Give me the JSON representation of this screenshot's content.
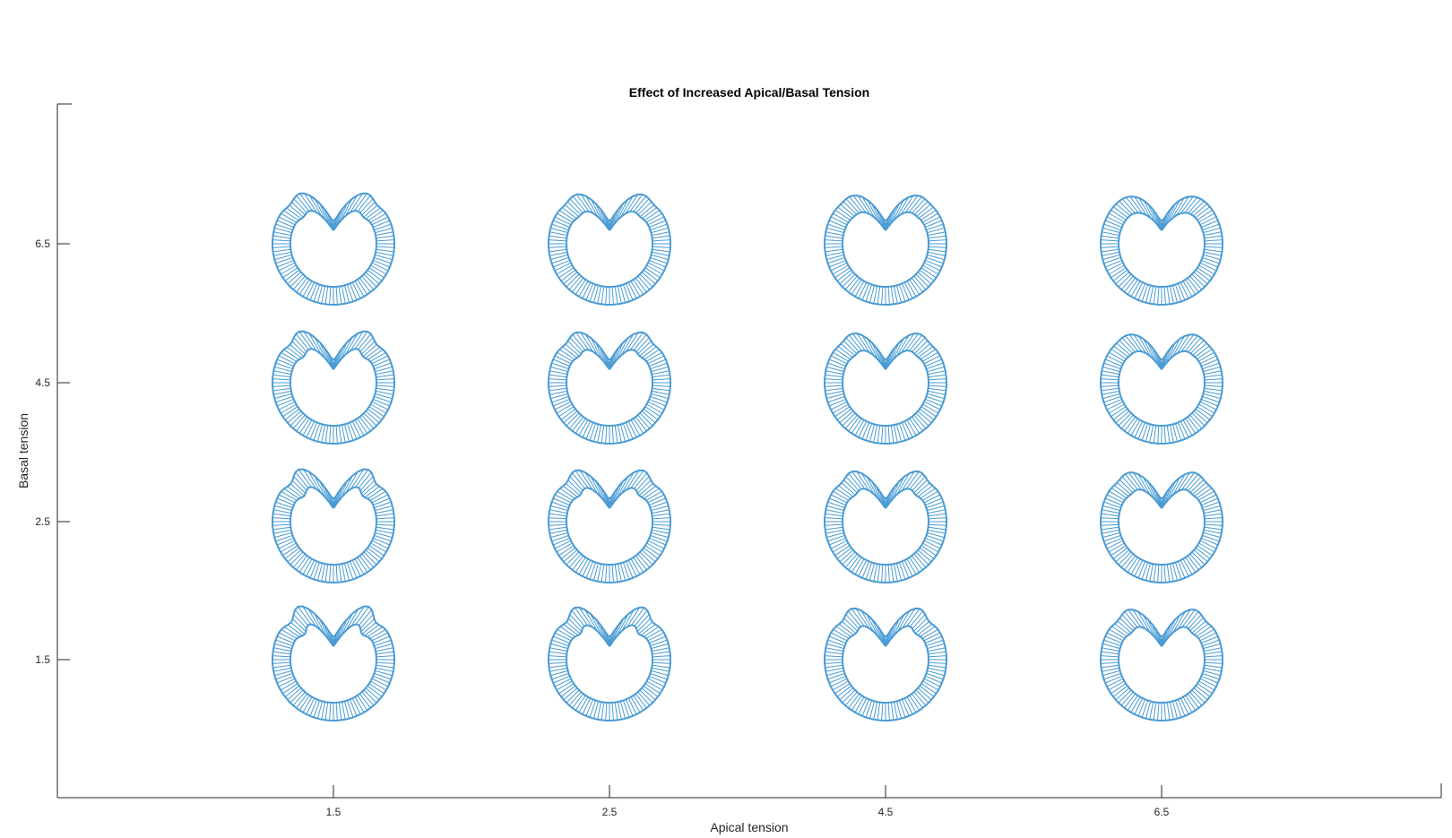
{
  "chart_data": {
    "type": "scatter",
    "title": "Effect of Increased Apical/Basal Tension",
    "xlabel": "Apical tension",
    "ylabel": "Basal tension",
    "xtick_labels": [
      "1.5",
      "2.5",
      "4.5",
      "6.5"
    ],
    "ytick_labels": [
      "1.5",
      "2.5",
      "4.5",
      "6.5"
    ],
    "grid": false,
    "marker": "simulated epithelial cross-section",
    "marker_color": "#4a9bd4",
    "points": [
      {
        "apical": "1.5",
        "basal": "1.5"
      },
      {
        "apical": "2.5",
        "basal": "1.5"
      },
      {
        "apical": "4.5",
        "basal": "1.5"
      },
      {
        "apical": "6.5",
        "basal": "1.5"
      },
      {
        "apical": "1.5",
        "basal": "2.5"
      },
      {
        "apical": "2.5",
        "basal": "2.5"
      },
      {
        "apical": "4.5",
        "basal": "2.5"
      },
      {
        "apical": "6.5",
        "basal": "2.5"
      },
      {
        "apical": "1.5",
        "basal": "4.5"
      },
      {
        "apical": "2.5",
        "basal": "4.5"
      },
      {
        "apical": "4.5",
        "basal": "4.5"
      },
      {
        "apical": "6.5",
        "basal": "4.5"
      },
      {
        "apical": "1.5",
        "basal": "6.5"
      },
      {
        "apical": "2.5",
        "basal": "6.5"
      },
      {
        "apical": "4.5",
        "basal": "6.5"
      },
      {
        "apical": "6.5",
        "basal": "6.5"
      }
    ]
  }
}
